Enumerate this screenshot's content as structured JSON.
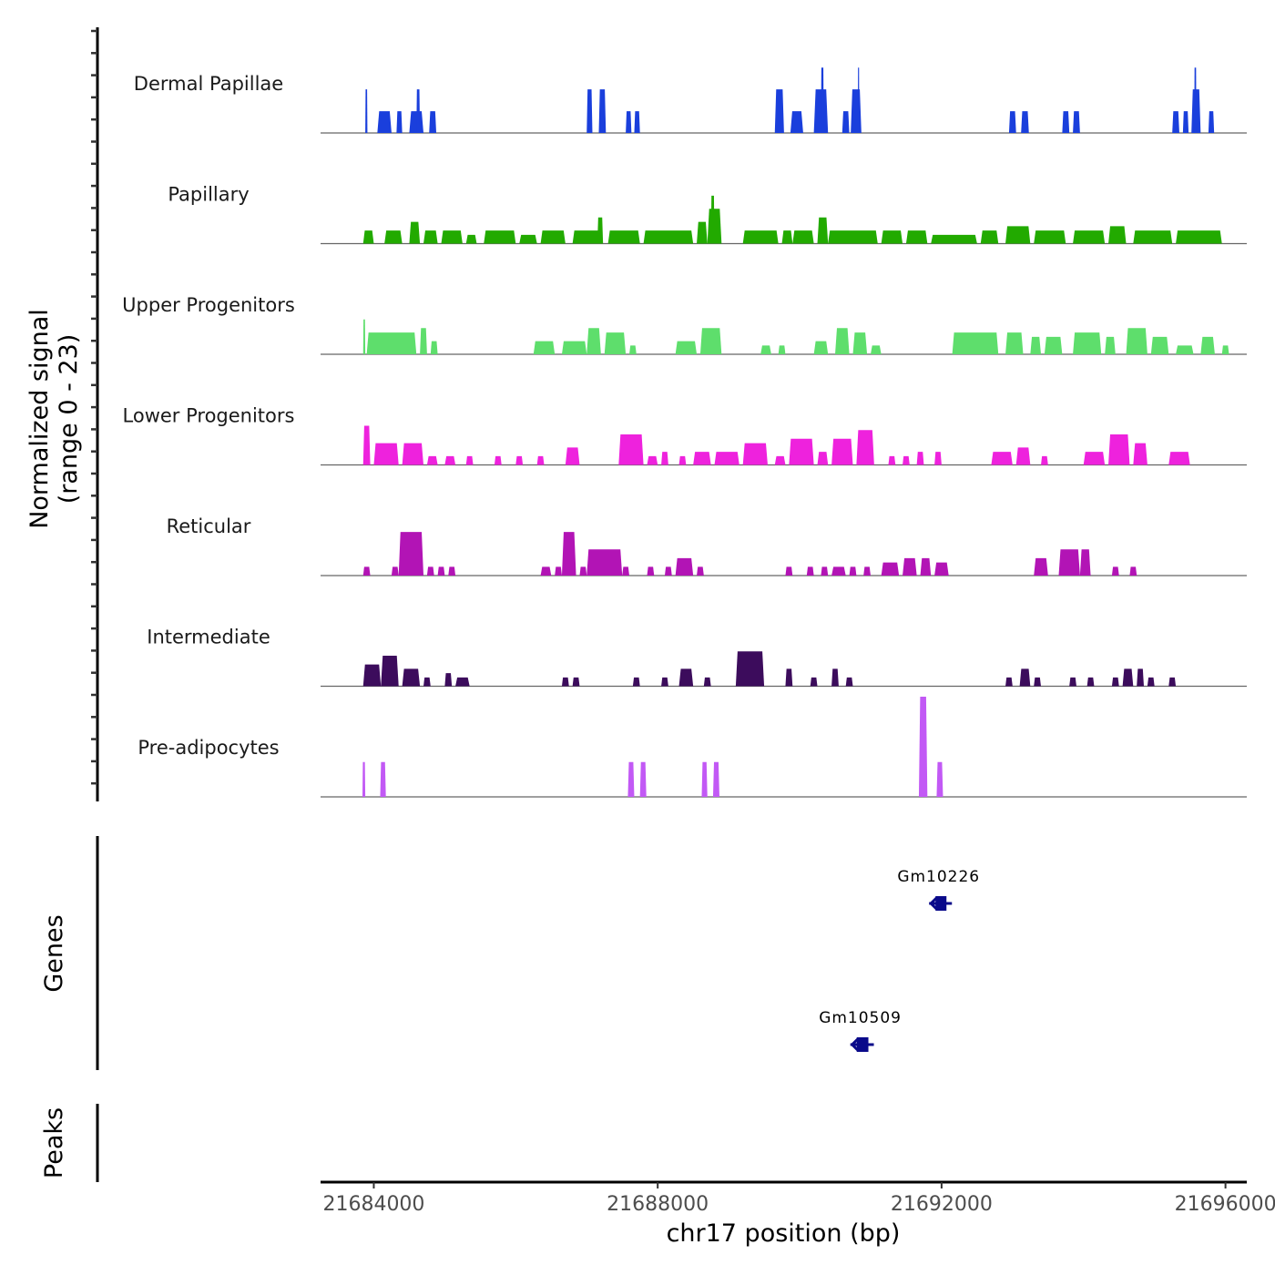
{
  "chart_data": {
    "type": "area",
    "title": "",
    "ylabel": "Normalized signal\n(range 0 - 23)",
    "ylabel_lines": [
      "Normalized signal",
      "(range 0 - 23)"
    ],
    "xlabel": "chr17 position (bp)",
    "xlim": [
      21683250,
      21696300
    ],
    "ylim": [
      0,
      23
    ],
    "x_ticks": [
      21684000,
      21688000,
      21692000,
      21696000
    ],
    "x_tick_labels": [
      "21684000",
      "21688000",
      "21692000",
      "21696000"
    ],
    "grid": false,
    "legend": "none",
    "series": [
      {
        "name": "Dermal Papillae",
        "color": "#1a3fdc",
        "peaks": [
          [
            21683880,
            21683910,
            10
          ],
          [
            21684050,
            21684250,
            5
          ],
          [
            21684320,
            21684400,
            5
          ],
          [
            21684500,
            21684700,
            5
          ],
          [
            21684600,
            21684650,
            10
          ],
          [
            21684780,
            21684880,
            5
          ],
          [
            21687000,
            21687080,
            10
          ],
          [
            21687170,
            21687270,
            10
          ],
          [
            21687550,
            21687630,
            5
          ],
          [
            21687670,
            21687750,
            5
          ],
          [
            21689650,
            21689780,
            10
          ],
          [
            21689870,
            21690050,
            5
          ],
          [
            21690200,
            21690400,
            10
          ],
          [
            21690300,
            21690340,
            15
          ],
          [
            21690600,
            21690700,
            5
          ],
          [
            21690720,
            21690870,
            10
          ],
          [
            21690820,
            21690840,
            15
          ],
          [
            21692950,
            21693050,
            5
          ],
          [
            21693120,
            21693230,
            5
          ],
          [
            21693700,
            21693800,
            5
          ],
          [
            21693850,
            21693950,
            5
          ],
          [
            21695250,
            21695350,
            5
          ],
          [
            21695400,
            21695480,
            5
          ],
          [
            21695520,
            21695650,
            10
          ],
          [
            21695560,
            21695590,
            15
          ],
          [
            21695760,
            21695840,
            5
          ]
        ]
      },
      {
        "name": "Papillary",
        "color": "#22aa00",
        "peaks": [
          [
            21683850,
            21684000,
            3
          ],
          [
            21684150,
            21684400,
            3
          ],
          [
            21684500,
            21684650,
            5
          ],
          [
            21684700,
            21684900,
            3
          ],
          [
            21684950,
            21685250,
            3
          ],
          [
            21685300,
            21685450,
            2
          ],
          [
            21685550,
            21686000,
            3
          ],
          [
            21686050,
            21686300,
            2
          ],
          [
            21686350,
            21686700,
            3
          ],
          [
            21686800,
            21687200,
            3
          ],
          [
            21687150,
            21687230,
            6
          ],
          [
            21687300,
            21687750,
            3
          ],
          [
            21687800,
            21688500,
            3
          ],
          [
            21688550,
            21688700,
            5
          ],
          [
            21688700,
            21688900,
            8
          ],
          [
            21688750,
            21688800,
            11
          ],
          [
            21689200,
            21689700,
            3
          ],
          [
            21689750,
            21689900,
            3
          ],
          [
            21689900,
            21690200,
            3
          ],
          [
            21690250,
            21690400,
            6
          ],
          [
            21690400,
            21691100,
            3
          ],
          [
            21691150,
            21691450,
            3
          ],
          [
            21691500,
            21691800,
            3
          ],
          [
            21691850,
            21692500,
            2
          ],
          [
            21692550,
            21692800,
            3
          ],
          [
            21692900,
            21693250,
            4
          ],
          [
            21693300,
            21693750,
            3
          ],
          [
            21693850,
            21694300,
            3
          ],
          [
            21694350,
            21694600,
            4
          ],
          [
            21694700,
            21695250,
            3
          ],
          [
            21695300,
            21695950,
            3
          ]
        ]
      },
      {
        "name": "Upper Progenitors",
        "color": "#5ede6c",
        "peaks": [
          [
            21683850,
            21683880,
            8
          ],
          [
            21683900,
            21684600,
            5
          ],
          [
            21684650,
            21684750,
            6
          ],
          [
            21684800,
            21684900,
            3
          ],
          [
            21686250,
            21686550,
            3
          ],
          [
            21686650,
            21687000,
            3
          ],
          [
            21687000,
            21687200,
            6
          ],
          [
            21687250,
            21687550,
            5
          ],
          [
            21687600,
            21687700,
            2
          ],
          [
            21688250,
            21688550,
            3
          ],
          [
            21688600,
            21688900,
            6
          ],
          [
            21689450,
            21689600,
            2
          ],
          [
            21689700,
            21689800,
            2
          ],
          [
            21690200,
            21690400,
            3
          ],
          [
            21690500,
            21690700,
            6
          ],
          [
            21690750,
            21690950,
            5
          ],
          [
            21691000,
            21691150,
            2
          ],
          [
            21692150,
            21692800,
            5
          ],
          [
            21692900,
            21693150,
            5
          ],
          [
            21693250,
            21693400,
            4
          ],
          [
            21693450,
            21693700,
            4
          ],
          [
            21693850,
            21694250,
            5
          ],
          [
            21694300,
            21694450,
            4
          ],
          [
            21694600,
            21694900,
            6
          ],
          [
            21694950,
            21695200,
            4
          ],
          [
            21695300,
            21695550,
            2
          ],
          [
            21695650,
            21695850,
            4
          ],
          [
            21695950,
            21696050,
            2
          ]
        ]
      },
      {
        "name": "Lower Progenitors",
        "color": "#ee22dd",
        "peaks": [
          [
            21683850,
            21683950,
            9
          ],
          [
            21684000,
            21684350,
            5
          ],
          [
            21684400,
            21684700,
            5
          ],
          [
            21684750,
            21684900,
            2
          ],
          [
            21685000,
            21685150,
            2
          ],
          [
            21685300,
            21685400,
            2
          ],
          [
            21685700,
            21685800,
            2
          ],
          [
            21686000,
            21686100,
            2
          ],
          [
            21686300,
            21686400,
            2
          ],
          [
            21686700,
            21686900,
            4
          ],
          [
            21687450,
            21687800,
            7
          ],
          [
            21687850,
            21688000,
            2
          ],
          [
            21688050,
            21688150,
            3
          ],
          [
            21688300,
            21688400,
            2
          ],
          [
            21688500,
            21688750,
            3
          ],
          [
            21688800,
            21689150,
            3
          ],
          [
            21689200,
            21689550,
            5
          ],
          [
            21689650,
            21689800,
            2
          ],
          [
            21689850,
            21690200,
            6
          ],
          [
            21690250,
            21690400,
            3
          ],
          [
            21690450,
            21690750,
            6
          ],
          [
            21690800,
            21691050,
            8
          ],
          [
            21691250,
            21691350,
            2
          ],
          [
            21691450,
            21691550,
            2
          ],
          [
            21691650,
            21691750,
            3
          ],
          [
            21691900,
            21692000,
            3
          ],
          [
            21692700,
            21693000,
            3
          ],
          [
            21693050,
            21693250,
            4
          ],
          [
            21693400,
            21693500,
            2
          ],
          [
            21694000,
            21694300,
            3
          ],
          [
            21694350,
            21694650,
            7
          ],
          [
            21694700,
            21694900,
            5
          ],
          [
            21695200,
            21695500,
            3
          ]
        ]
      },
      {
        "name": "Reticular",
        "color": "#b214b5",
        "peaks": [
          [
            21683850,
            21683950,
            2
          ],
          [
            21684250,
            21684350,
            2
          ],
          [
            21684350,
            21684700,
            10
          ],
          [
            21684750,
            21684850,
            2
          ],
          [
            21684900,
            21685000,
            2
          ],
          [
            21685050,
            21685150,
            2
          ],
          [
            21686350,
            21686500,
            2
          ],
          [
            21686550,
            21686650,
            2
          ],
          [
            21686650,
            21686850,
            10
          ],
          [
            21686900,
            21687000,
            2
          ],
          [
            21687000,
            21687500,
            6
          ],
          [
            21687500,
            21687600,
            2
          ],
          [
            21687850,
            21687950,
            2
          ],
          [
            21688100,
            21688200,
            2
          ],
          [
            21688250,
            21688500,
            4
          ],
          [
            21688550,
            21688650,
            2
          ],
          [
            21689800,
            21689900,
            2
          ],
          [
            21690100,
            21690200,
            2
          ],
          [
            21690300,
            21690400,
            2
          ],
          [
            21690450,
            21690650,
            2
          ],
          [
            21690700,
            21690800,
            2
          ],
          [
            21690900,
            21691000,
            2
          ],
          [
            21691150,
            21691400,
            3
          ],
          [
            21691450,
            21691650,
            4
          ],
          [
            21691700,
            21691850,
            4
          ],
          [
            21691900,
            21692100,
            3
          ],
          [
            21693300,
            21693500,
            4
          ],
          [
            21693650,
            21693950,
            6
          ],
          [
            21693950,
            21694100,
            6
          ],
          [
            21694400,
            21694500,
            2
          ],
          [
            21694650,
            21694750,
            2
          ]
        ]
      },
      {
        "name": "Intermediate",
        "color": "#3c0c5c",
        "peaks": [
          [
            21683850,
            21684100,
            5
          ],
          [
            21684100,
            21684350,
            7
          ],
          [
            21684400,
            21684650,
            4
          ],
          [
            21684700,
            21684800,
            2
          ],
          [
            21685000,
            21685100,
            3
          ],
          [
            21685150,
            21685350,
            2
          ],
          [
            21686650,
            21686750,
            2
          ],
          [
            21686800,
            21686900,
            2
          ],
          [
            21687650,
            21687750,
            2
          ],
          [
            21688050,
            21688150,
            2
          ],
          [
            21688300,
            21688500,
            4
          ],
          [
            21688650,
            21688750,
            2
          ],
          [
            21689100,
            21689500,
            8
          ],
          [
            21689800,
            21689900,
            4
          ],
          [
            21690150,
            21690250,
            2
          ],
          [
            21690450,
            21690550,
            4
          ],
          [
            21690650,
            21690750,
            2
          ],
          [
            21692900,
            21693000,
            2
          ],
          [
            21693100,
            21693250,
            4
          ],
          [
            21693300,
            21693400,
            2
          ],
          [
            21693800,
            21693900,
            2
          ],
          [
            21694050,
            21694150,
            2
          ],
          [
            21694400,
            21694500,
            2
          ],
          [
            21694550,
            21694700,
            4
          ],
          [
            21694750,
            21694850,
            4
          ],
          [
            21694900,
            21695000,
            2
          ],
          [
            21695200,
            21695300,
            2
          ]
        ]
      },
      {
        "name": "Pre-adipocytes",
        "color": "#c259f5",
        "peaks": [
          [
            21683840,
            21683880,
            8
          ],
          [
            21684090,
            21684170,
            8
          ],
          [
            21687580,
            21687670,
            8
          ],
          [
            21687750,
            21687840,
            8
          ],
          [
            21688620,
            21688700,
            8
          ],
          [
            21688780,
            21688870,
            8
          ],
          [
            21691680,
            21691800,
            23
          ],
          [
            21691930,
            21692020,
            8
          ]
        ]
      }
    ]
  },
  "genes": {
    "label": "Genes",
    "items": [
      {
        "name": "Gm10226",
        "start": 21691850,
        "end": 21692120,
        "strand": "-",
        "row": 1
      },
      {
        "name": "Gm10509",
        "start": 21690740,
        "end": 21691020,
        "strand": "-",
        "row": 2
      }
    ],
    "color": "#0a0a8a"
  },
  "peaks": {
    "label": "Peaks"
  },
  "colors": {
    "baseline": "#666666",
    "axis": "#000000"
  }
}
